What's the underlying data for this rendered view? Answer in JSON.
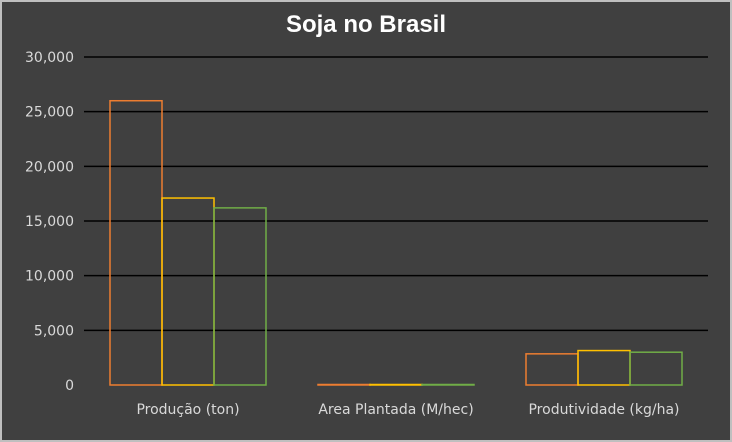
{
  "chart_data": {
    "type": "bar",
    "title": "Soja no Brasil",
    "categories": [
      "Produção (ton)",
      "Area Plantada (M/hec)",
      "Produtividade (kg/ha)"
    ],
    "series": [
      {
        "values": [
          26000,
          35,
          2850
        ],
        "color": "#ed7d31"
      },
      {
        "values": [
          17100,
          30,
          3150
        ],
        "color": "#ffc000"
      },
      {
        "values": [
          16200,
          28,
          3000
        ],
        "color": "#70ad47"
      }
    ],
    "ylim": [
      0,
      30000
    ],
    "y_ticks": [
      "0",
      "5,000",
      "10,000",
      "15,000",
      "20,000",
      "25,000",
      "30,000"
    ],
    "grid": true,
    "legend": "none",
    "background": "#404040",
    "gridline_color": "#000000",
    "text_color": "#d9d9d9",
    "title_color": "#ffffff"
  }
}
